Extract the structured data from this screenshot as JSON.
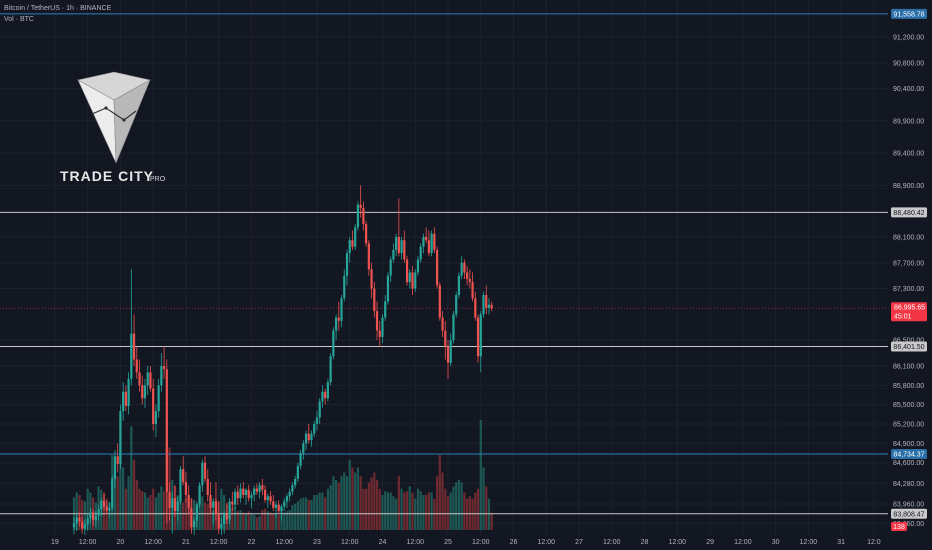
{
  "header": {
    "symbol_line": "Bitcoin / TetherUS · 1h · BINANCE",
    "volume_line": "Vol · BTC"
  },
  "logo": {
    "name": "TRADE CITY",
    "suffix": "PRO"
  },
  "colors": {
    "background": "#131722",
    "up": "#26a69a",
    "down": "#ef5350",
    "level_line": "#c8c8c8",
    "blue_line": "#2a7fbf",
    "price_tag": "#f23645"
  },
  "price_levels": [
    {
      "label": "91,558.78",
      "value": 91558.78,
      "style": "blue"
    },
    {
      "label": "88,480.42",
      "value": 88480.42,
      "style": "gray"
    },
    {
      "label": "86,401.50",
      "value": 86401.5,
      "style": "gray"
    },
    {
      "label": "84,734.37",
      "value": 84734.37,
      "style": "blue"
    },
    {
      "label": "83,808.47",
      "value": 83808.47,
      "style": "gray"
    }
  ],
  "current_price": {
    "label": "86,995.65",
    "value": 86995.65,
    "countdown": "45:01"
  },
  "volume_badge": "138",
  "chart_data": {
    "type": "candlestick",
    "y_ticks": [
      {
        "label": "91,200.00",
        "value": 91200
      },
      {
        "label": "90,800.00",
        "value": 90800
      },
      {
        "label": "90,400.00",
        "value": 90400
      },
      {
        "label": "89,900.00",
        "value": 89900
      },
      {
        "label": "89,400.00",
        "value": 89400
      },
      {
        "label": "88,900.00",
        "value": 88900
      },
      {
        "label": "88,100.00",
        "value": 88100
      },
      {
        "label": "87,700.00",
        "value": 87700
      },
      {
        "label": "87,300.00",
        "value": 87300
      },
      {
        "label": "86,500.00",
        "value": 86500
      },
      {
        "label": "86,100.00",
        "value": 86100
      },
      {
        "label": "85,800.00",
        "value": 85800
      },
      {
        "label": "85,500.00",
        "value": 85500
      },
      {
        "label": "85,200.00",
        "value": 85200
      },
      {
        "label": "84,900.00",
        "value": 84900
      },
      {
        "label": "84,600.00",
        "value": 84600
      },
      {
        "label": "84,280.00",
        "value": 84280
      },
      {
        "label": "83,960.00",
        "value": 83960
      },
      {
        "label": "83,660.00",
        "value": 83660
      }
    ],
    "x_ticks": [
      {
        "label": "19",
        "t": -7
      },
      {
        "label": "12:00",
        "t": 5
      },
      {
        "label": "20",
        "t": 17
      },
      {
        "label": "12:00",
        "t": 29
      },
      {
        "label": "21",
        "t": 41
      },
      {
        "label": "12:00",
        "t": 53
      },
      {
        "label": "22",
        "t": 65
      },
      {
        "label": "12:00",
        "t": 77
      },
      {
        "label": "23",
        "t": 89
      },
      {
        "label": "12:00",
        "t": 101
      },
      {
        "label": "24",
        "t": 113
      },
      {
        "label": "12:00",
        "t": 125
      },
      {
        "label": "25",
        "t": 137
      },
      {
        "label": "12:00",
        "t": 149
      },
      {
        "label": "26",
        "t": 161
      },
      {
        "label": "12:00",
        "t": 173
      },
      {
        "label": "27",
        "t": 185
      },
      {
        "label": "12:00",
        "t": 197
      },
      {
        "label": "28",
        "t": 209
      },
      {
        "label": "12:00",
        "t": 221
      },
      {
        "label": "29",
        "t": 233
      },
      {
        "label": "12:00",
        "t": 245
      },
      {
        "label": "30",
        "t": 257
      },
      {
        "label": "12:00",
        "t": 269
      },
      {
        "label": "31",
        "t": 281
      },
      {
        "label": "12:0",
        "t": 293
      }
    ],
    "volume_scale_max": 1000,
    "candles": [
      [
        83600,
        83760,
        83490,
        83660,
        260
      ],
      [
        83660,
        83800,
        83540,
        83750,
        300
      ],
      [
        83750,
        83830,
        83610,
        83690,
        280
      ],
      [
        83690,
        83770,
        83500,
        83580,
        240
      ],
      [
        83580,
        83720,
        83450,
        83640,
        230
      ],
      [
        83640,
        83800,
        83550,
        83740,
        330
      ],
      [
        83740,
        83900,
        83660,
        83830,
        300
      ],
      [
        83830,
        83880,
        83620,
        83710,
        260
      ],
      [
        83710,
        83850,
        83610,
        83780,
        220
      ],
      [
        83780,
        83950,
        83700,
        83880,
        350
      ],
      [
        83880,
        84050,
        83770,
        84010,
        320
      ],
      [
        84010,
        84120,
        83850,
        83920,
        300
      ],
      [
        83920,
        84010,
        83800,
        83860,
        250
      ],
      [
        83860,
        83990,
        83750,
        83900,
        220
      ],
      [
        83900,
        84400,
        83850,
        84350,
        600
      ],
      [
        84350,
        84800,
        84200,
        84700,
        520
      ],
      [
        84700,
        84900,
        84450,
        84580,
        430
      ],
      [
        84580,
        85500,
        84500,
        85400,
        680
      ],
      [
        85400,
        85850,
        85250,
        85700,
        500
      ],
      [
        85700,
        85800,
        85400,
        85480,
        330
      ],
      [
        85480,
        86000,
        85350,
        85900,
        430
      ],
      [
        85900,
        87600,
        85800,
        86600,
        830
      ],
      [
        86600,
        86900,
        86100,
        86200,
        560
      ],
      [
        86200,
        86400,
        85900,
        86000,
        400
      ],
      [
        86000,
        86200,
        85700,
        85800,
        330
      ],
      [
        85800,
        85950,
        85500,
        85600,
        310
      ],
      [
        85600,
        85900,
        85450,
        85800,
        300
      ],
      [
        85800,
        86100,
        85650,
        86000,
        260
      ],
      [
        86000,
        86100,
        85700,
        85750,
        280
      ],
      [
        85750,
        85900,
        85100,
        85200,
        330
      ],
      [
        85200,
        85500,
        85000,
        85400,
        260
      ],
      [
        85400,
        85900,
        85300,
        85800,
        300
      ],
      [
        85800,
        86300,
        85700,
        86100,
        350
      ],
      [
        86100,
        86400,
        85900,
        86050,
        310
      ],
      [
        86050,
        86200,
        83660,
        84150,
        880
      ],
      [
        84150,
        84300,
        83700,
        83900,
        660
      ],
      [
        83900,
        84150,
        83500,
        84050,
        400
      ],
      [
        84050,
        84250,
        83760,
        83850,
        350
      ],
      [
        83850,
        84100,
        83700,
        84000,
        270
      ],
      [
        84000,
        84550,
        83950,
        84500,
        250
      ],
      [
        84500,
        84700,
        84250,
        84300,
        220
      ],
      [
        84300,
        84450,
        83980,
        84100,
        250
      ],
      [
        84100,
        84250,
        83800,
        83900,
        260
      ],
      [
        83900,
        84050,
        83500,
        83600,
        250
      ],
      [
        83600,
        83750,
        83450,
        83700,
        240
      ],
      [
        83700,
        84000,
        83600,
        83950,
        210
      ],
      [
        83950,
        84300,
        83900,
        84250,
        280
      ],
      [
        84250,
        84650,
        84150,
        84600,
        270
      ],
      [
        84600,
        84700,
        84300,
        84350,
        220
      ],
      [
        84350,
        84500,
        84000,
        84100,
        210
      ],
      [
        84100,
        84300,
        83800,
        83900,
        180
      ],
      [
        83900,
        84050,
        83650,
        84000,
        160
      ],
      [
        84000,
        84300,
        83700,
        83800,
        250
      ],
      [
        83800,
        84000,
        83500,
        83580,
        230
      ],
      [
        83580,
        83750,
        83300,
        83650,
        330
      ],
      [
        83650,
        83850,
        83500,
        83800,
        280
      ],
      [
        83800,
        83950,
        83650,
        83720,
        220
      ],
      [
        83720,
        84050,
        83650,
        84000,
        210
      ],
      [
        84000,
        84150,
        83850,
        83950,
        180
      ],
      [
        83950,
        84200,
        83880,
        84150,
        190
      ],
      [
        84150,
        84250,
        83950,
        84050,
        150
      ],
      [
        84050,
        84280,
        83980,
        84200,
        160
      ],
      [
        84200,
        84300,
        84050,
        84100,
        140
      ],
      [
        84100,
        84200,
        83950,
        84180,
        130
      ],
      [
        84180,
        84260,
        84000,
        84050,
        150
      ],
      [
        84050,
        84150,
        83900,
        84100,
        130
      ],
      [
        84100,
        84250,
        84000,
        84200,
        120
      ],
      [
        84200,
        84280,
        84100,
        84150,
        100
      ],
      [
        84150,
        84300,
        84050,
        84250,
        110
      ],
      [
        84250,
        84350,
        84100,
        84180,
        160
      ],
      [
        84180,
        84250,
        83980,
        84020,
        170
      ],
      [
        84020,
        84120,
        83900,
        84080,
        150
      ],
      [
        84080,
        84160,
        83950,
        84000,
        140
      ],
      [
        84000,
        84100,
        83850,
        83900,
        130
      ],
      [
        83900,
        84000,
        83750,
        83950,
        130
      ],
      [
        83950,
        84020,
        83800,
        83850,
        120
      ],
      [
        83850,
        83950,
        83700,
        83920,
        150
      ],
      [
        83920,
        84050,
        83850,
        84000,
        140
      ],
      [
        84000,
        84120,
        83900,
        84080,
        150
      ],
      [
        84080,
        84200,
        84000,
        84150,
        160
      ],
      [
        84150,
        84300,
        84100,
        84250,
        200
      ],
      [
        84250,
        84400,
        84200,
        84350,
        210
      ],
      [
        84350,
        84600,
        84300,
        84550,
        230
      ],
      [
        84550,
        84800,
        84500,
        84750,
        250
      ],
      [
        84750,
        84950,
        84650,
        84900,
        260
      ],
      [
        84900,
        85100,
        84800,
        85050,
        260
      ],
      [
        85050,
        85200,
        84900,
        84950,
        240
      ],
      [
        84950,
        85100,
        84850,
        85050,
        240
      ],
      [
        85050,
        85250,
        85000,
        85200,
        280
      ],
      [
        85200,
        85400,
        85100,
        85300,
        280
      ],
      [
        85300,
        85600,
        85200,
        85550,
        300
      ],
      [
        85550,
        85800,
        85450,
        85700,
        300
      ],
      [
        85700,
        85750,
        85500,
        85600,
        260
      ],
      [
        85600,
        85900,
        85550,
        85850,
        330
      ],
      [
        85850,
        86300,
        85800,
        86250,
        360
      ],
      [
        86250,
        86700,
        86200,
        86650,
        430
      ],
      [
        86650,
        86900,
        86500,
        86850,
        400
      ],
      [
        86850,
        87100,
        86650,
        86800,
        380
      ],
      [
        86800,
        87200,
        86700,
        87150,
        430
      ],
      [
        87150,
        87600,
        87100,
        87500,
        460
      ],
      [
        87500,
        87900,
        87350,
        87850,
        430
      ],
      [
        87850,
        88100,
        87700,
        88050,
        560
      ],
      [
        88050,
        88200,
        87900,
        87950,
        500
      ],
      [
        87950,
        88300,
        87900,
        88250,
        460
      ],
      [
        88250,
        88650,
        88200,
        88600,
        500
      ],
      [
        88600,
        88900,
        88400,
        88550,
        430
      ],
      [
        88550,
        88650,
        88200,
        88300,
        330
      ],
      [
        88300,
        88350,
        87950,
        88000,
        330
      ],
      [
        88000,
        88050,
        87500,
        87600,
        380
      ],
      [
        87600,
        87700,
        87150,
        87300,
        420
      ],
      [
        87300,
        87400,
        86850,
        86950,
        460
      ],
      [
        86950,
        87100,
        86500,
        86650,
        400
      ],
      [
        86650,
        86800,
        86400,
        86550,
        330
      ],
      [
        86550,
        86900,
        86450,
        86850,
        280
      ],
      [
        86850,
        87200,
        86800,
        87100,
        310
      ],
      [
        87100,
        87550,
        87050,
        87500,
        300
      ],
      [
        87500,
        87800,
        87400,
        87750,
        300
      ],
      [
        87750,
        88000,
        87700,
        87900,
        270
      ],
      [
        87900,
        88150,
        87800,
        88100,
        250
      ],
      [
        88100,
        88700,
        87800,
        87850,
        430
      ],
      [
        87850,
        88100,
        87750,
        88050,
        330
      ],
      [
        88050,
        88200,
        87700,
        87750,
        300
      ],
      [
        87750,
        87800,
        87350,
        87400,
        310
      ],
      [
        87400,
        87600,
        87300,
        87550,
        350
      ],
      [
        87550,
        87650,
        87200,
        87300,
        300
      ],
      [
        87300,
        87600,
        87250,
        87550,
        250
      ],
      [
        87550,
        87800,
        87500,
        87750,
        330
      ],
      [
        87750,
        88000,
        87700,
        87950,
        310
      ],
      [
        87950,
        88150,
        87850,
        88100,
        280
      ],
      [
        88100,
        88250,
        88000,
        88050,
        280
      ],
      [
        88050,
        88200,
        87800,
        87850,
        300
      ],
      [
        87850,
        88200,
        87800,
        88150,
        300
      ],
      [
        88150,
        88250,
        87850,
        87900,
        250
      ],
      [
        87900,
        87950,
        87300,
        87350,
        430
      ],
      [
        87350,
        87400,
        86800,
        86850,
        600
      ],
      [
        86850,
        86950,
        86550,
        86650,
        460
      ],
      [
        86650,
        86800,
        86200,
        86400,
        330
      ],
      [
        86400,
        86500,
        85900,
        86150,
        270
      ],
      [
        86150,
        86600,
        86100,
        86500,
        300
      ],
      [
        86500,
        86950,
        86450,
        86900,
        350
      ],
      [
        86900,
        87250,
        86850,
        87200,
        380
      ],
      [
        87200,
        87550,
        87150,
        87500,
        400
      ],
      [
        87500,
        87800,
        87450,
        87700,
        380
      ],
      [
        87700,
        87750,
        87450,
        87550,
        300
      ],
      [
        87550,
        87650,
        87350,
        87450,
        250
      ],
      [
        87450,
        87600,
        87300,
        87400,
        270
      ],
      [
        87400,
        87550,
        87100,
        87150,
        250
      ],
      [
        87150,
        87250,
        86800,
        86850,
        300
      ],
      [
        86850,
        86900,
        86150,
        86250,
        330
      ],
      [
        86250,
        86950,
        86000,
        86900,
        880
      ],
      [
        86900,
        87250,
        86850,
        87200,
        500
      ],
      [
        87200,
        87350,
        86900,
        87000,
        350
      ],
      [
        87000,
        87150,
        86900,
        87050,
        250
      ],
      [
        87050,
        87100,
        86950,
        86990,
        138
      ]
    ]
  }
}
